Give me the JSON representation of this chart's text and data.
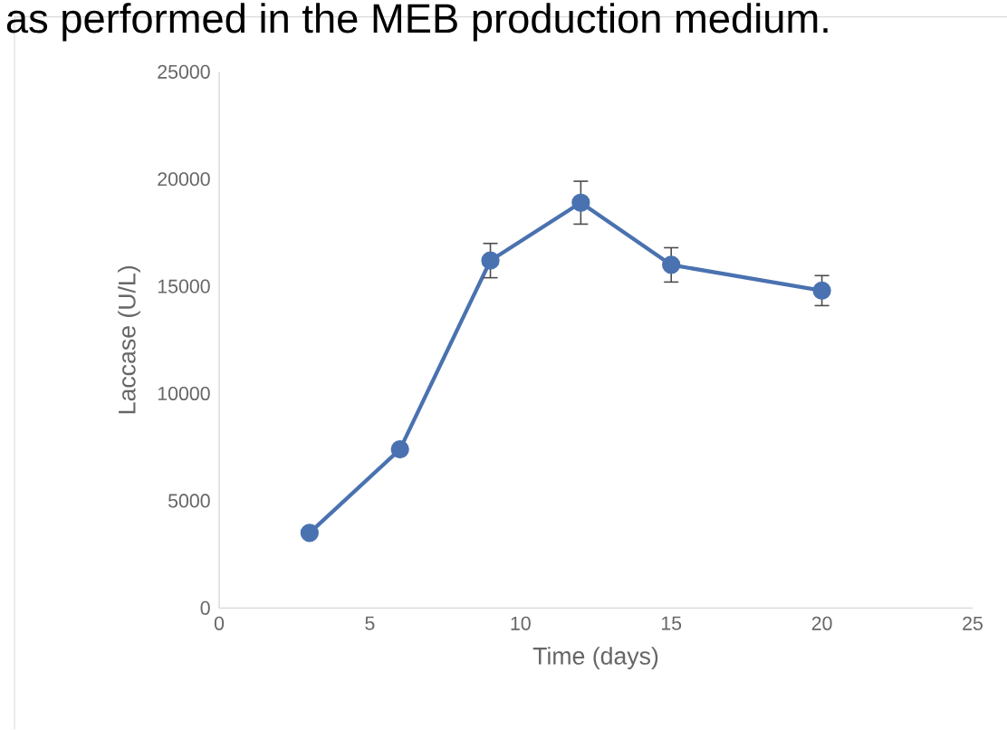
{
  "chart_data": {
    "type": "line",
    "xlabel": "Time (days)",
    "ylabel": "Laccase (U/L)",
    "annotations": [
      "as performed in the MEB production medium."
    ],
    "x": [
      3,
      6,
      9,
      12,
      15,
      20
    ],
    "series": [
      {
        "color": "#4a72b0",
        "values": [
          3500,
          7400,
          16200,
          18900,
          16000,
          14800
        ],
        "errors": [
          null,
          null,
          800,
          1000,
          800,
          700
        ]
      }
    ],
    "xlim": [
      0,
      25
    ],
    "xticks": [
      0,
      5,
      10,
      15,
      20,
      25
    ],
    "ylim": [
      0,
      25000
    ],
    "yticks": [
      0,
      5000,
      10000,
      15000,
      20000,
      25000
    ],
    "marker": "circle",
    "line_style": "solid",
    "grid": false
  }
}
